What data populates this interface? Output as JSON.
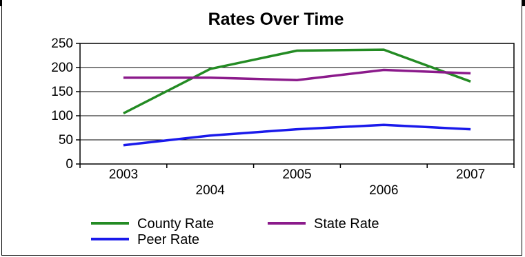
{
  "chart_data": {
    "type": "line",
    "title": "Rates Over Time",
    "categories": [
      "2003",
      "2004",
      "2005",
      "2006",
      "2007"
    ],
    "ylim": [
      0,
      250
    ],
    "yticks": [
      0,
      50,
      100,
      150,
      200,
      250
    ],
    "grid": true,
    "legend_position": "bottom-left",
    "series": [
      {
        "name": "County Rate",
        "color": "#238b23",
        "values": [
          105,
          197,
          235,
          237,
          171
        ]
      },
      {
        "name": "State Rate",
        "color": "#8b1a8b",
        "values": [
          179,
          179,
          174,
          195,
          188
        ]
      },
      {
        "name": "Peer Rate",
        "color": "#1a1aeb",
        "values": [
          39,
          59,
          72,
          81,
          72
        ]
      }
    ]
  }
}
